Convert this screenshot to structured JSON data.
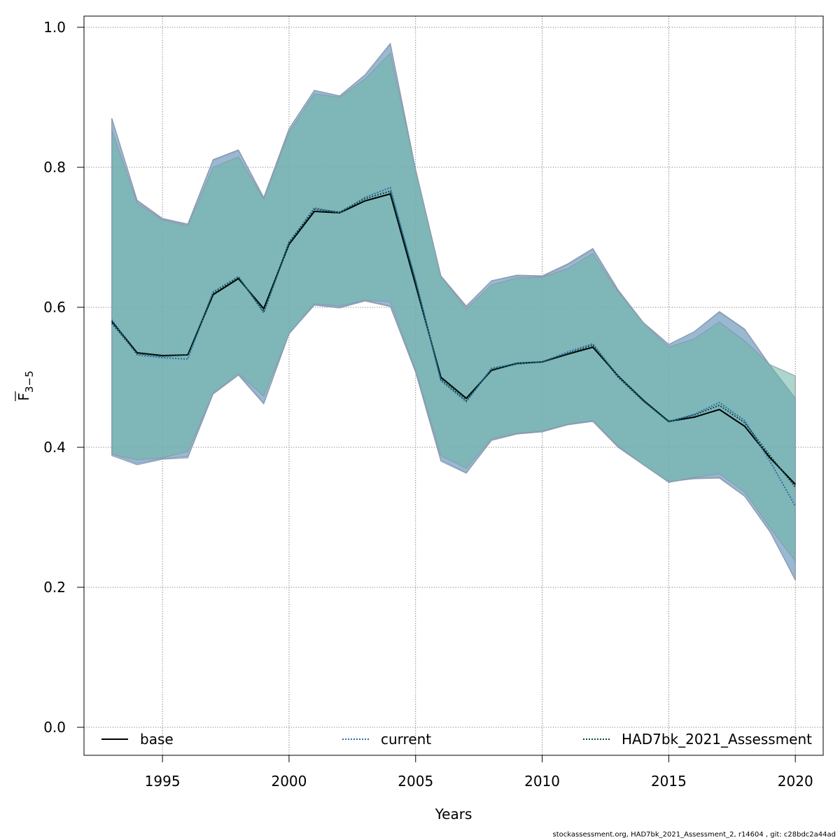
{
  "chart_data": {
    "type": "area",
    "xlabel": "Years",
    "ylabel_main": "F",
    "ylabel_sub": "3−5",
    "xlim": [
      1991.9,
      2021.1
    ],
    "ylim": [
      -0.04,
      1.016
    ],
    "x_ticks": [
      1995,
      2000,
      2005,
      2010,
      2015,
      2020
    ],
    "y_ticks": [
      0.0,
      0.2,
      0.4,
      0.6,
      0.8,
      1.0
    ],
    "y_tick_labels": [
      "0.0",
      "0.2",
      "0.4",
      "0.6",
      "0.8",
      "1.0"
    ],
    "grid": true,
    "legend_placement": "bottom",
    "x": [
      1993,
      1994,
      1995,
      1996,
      1997,
      1998,
      1999,
      2000,
      2001,
      2002,
      2003,
      2004,
      2005,
      2006,
      2007,
      2008,
      2009,
      2010,
      2011,
      2012,
      2013,
      2014,
      2015,
      2016,
      2017,
      2018,
      2019,
      2020
    ],
    "series": [
      {
        "name": "base",
        "color": "#000000",
        "dash": "solid",
        "band_color": "#7fa7c7",
        "values": [
          0.58,
          0.535,
          0.531,
          0.532,
          0.618,
          0.641,
          0.598,
          0.69,
          0.737,
          0.735,
          0.752,
          0.762,
          0.632,
          0.5,
          0.47,
          0.51,
          0.52,
          0.522,
          0.533,
          0.543,
          0.502,
          0.467,
          0.437,
          0.443,
          0.454,
          0.43,
          0.385,
          0.347
        ],
        "lower": [
          0.39,
          0.377,
          0.384,
          0.387,
          0.477,
          0.505,
          0.463,
          0.563,
          0.604,
          0.6,
          0.61,
          0.602,
          0.508,
          0.382,
          0.364,
          0.41,
          0.419,
          0.423,
          0.433,
          0.437,
          0.4,
          0.375,
          0.351,
          0.355,
          0.356,
          0.33,
          0.28,
          0.21
        ],
        "upper": [
          0.87,
          0.753,
          0.727,
          0.719,
          0.811,
          0.825,
          0.757,
          0.855,
          0.91,
          0.902,
          0.932,
          0.977,
          0.797,
          0.645,
          0.602,
          0.638,
          0.646,
          0.645,
          0.662,
          0.684,
          0.625,
          0.578,
          0.547,
          0.565,
          0.594,
          0.569,
          0.517,
          0.47
        ]
      },
      {
        "name": "current",
        "color": "#2b6ea8",
        "dash": "dotted",
        "band_color": "#7fa7c7",
        "values": [
          0.582,
          0.532,
          0.528,
          0.526,
          0.622,
          0.644,
          0.592,
          0.692,
          0.742,
          0.735,
          0.757,
          0.771,
          0.638,
          0.495,
          0.465,
          0.513,
          0.52,
          0.522,
          0.536,
          0.548,
          0.502,
          0.466,
          0.436,
          0.447,
          0.464,
          0.438,
          0.38,
          0.316
        ],
        "lower": [
          0.388,
          0.375,
          0.383,
          0.385,
          0.476,
          0.503,
          0.462,
          0.562,
          0.603,
          0.599,
          0.609,
          0.601,
          0.507,
          0.38,
          0.363,
          0.41,
          0.419,
          0.422,
          0.432,
          0.437,
          0.4,
          0.375,
          0.35,
          0.356,
          0.357,
          0.33,
          0.279,
          0.211
        ],
        "upper": [
          0.87,
          0.752,
          0.726,
          0.718,
          0.81,
          0.824,
          0.756,
          0.855,
          0.91,
          0.902,
          0.932,
          0.976,
          0.796,
          0.644,
          0.601,
          0.638,
          0.645,
          0.644,
          0.661,
          0.683,
          0.624,
          0.578,
          0.547,
          0.565,
          0.593,
          0.568,
          0.517,
          0.47
        ]
      },
      {
        "name": "HAD7bk_2021_Assessment",
        "color": "#0a4a40",
        "dash": "dotted",
        "band_color": "#6ab5a3",
        "values": [
          0.577,
          0.534,
          0.53,
          0.532,
          0.62,
          0.643,
          0.594,
          0.693,
          0.74,
          0.736,
          0.755,
          0.766,
          0.637,
          0.497,
          0.467,
          0.511,
          0.519,
          0.522,
          0.534,
          0.546,
          0.5,
          0.466,
          0.437,
          0.446,
          0.46,
          0.435,
          0.388,
          0.343
        ],
        "lower": [
          0.39,
          0.382,
          0.385,
          0.394,
          0.477,
          0.505,
          0.473,
          0.562,
          0.605,
          0.602,
          0.61,
          0.608,
          0.51,
          0.388,
          0.37,
          0.412,
          0.42,
          0.423,
          0.433,
          0.438,
          0.402,
          0.375,
          0.35,
          0.357,
          0.362,
          0.336,
          0.285,
          0.237
        ],
        "upper": [
          0.853,
          0.749,
          0.725,
          0.716,
          0.8,
          0.815,
          0.755,
          0.85,
          0.905,
          0.9,
          0.926,
          0.963,
          0.797,
          0.644,
          0.598,
          0.632,
          0.642,
          0.643,
          0.655,
          0.677,
          0.622,
          0.578,
          0.543,
          0.555,
          0.579,
          0.552,
          0.518,
          0.502
        ]
      }
    ]
  },
  "footer_text": "stockassessment.org, HAD7bk_2021_Assessment_2, r14604 , git: c28bdc2a44ad"
}
